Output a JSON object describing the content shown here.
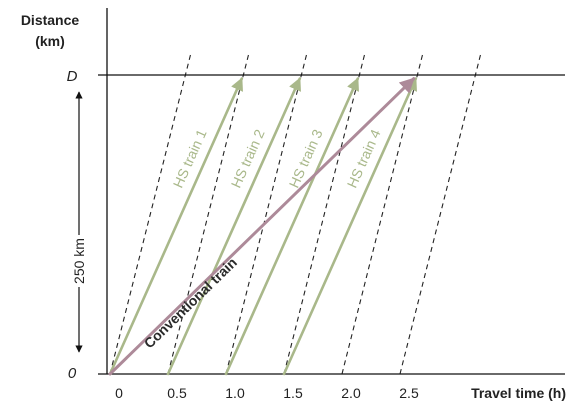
{
  "chart_data": {
    "type": "line",
    "xlabel": "Travel time (h)",
    "ylabel_line1": "Distance",
    "ylabel_line2": "(km)",
    "x_ticks": [
      {
        "value": 0,
        "label": "0"
      },
      {
        "value": 0.5,
        "label": "0.5"
      },
      {
        "value": 1.0,
        "label": "1.0"
      },
      {
        "value": 1.5,
        "label": "1.5"
      },
      {
        "value": 2.0,
        "label": "2.0"
      },
      {
        "value": 2.5,
        "label": "2.5"
      }
    ],
    "y_levels": [
      {
        "value": 0,
        "label": "0"
      },
      {
        "value": 250,
        "label": "D"
      }
    ],
    "distance_span_label": "250 km",
    "xlim": [
      -0.12,
      4.0
    ],
    "ylim": [
      0,
      340
    ],
    "grid": false,
    "series": [
      {
        "name": "HS train 1",
        "kind": "hs",
        "color": "#a9b88a",
        "x": [
          0.0,
          1.15
        ],
        "y": [
          0,
          250
        ]
      },
      {
        "name": "HS train 2",
        "kind": "hs",
        "color": "#a9b88a",
        "x": [
          0.5,
          1.65
        ],
        "y": [
          0,
          250
        ]
      },
      {
        "name": "HS train 3",
        "kind": "hs",
        "color": "#a9b88a",
        "x": [
          1.0,
          2.15
        ],
        "y": [
          0,
          250
        ]
      },
      {
        "name": "HS train 4",
        "kind": "hs",
        "color": "#a9b88a",
        "x": [
          1.5,
          2.65
        ],
        "y": [
          0,
          250
        ]
      },
      {
        "name": "Conventional train",
        "kind": "conventional",
        "color": "#ad8a99",
        "x": [
          0.0,
          2.65
        ],
        "y": [
          0,
          250
        ]
      }
    ],
    "dashed_lines": [
      {
        "x": [
          0.0,
          0.65
        ],
        "y": [
          0,
          250
        ]
      },
      {
        "x": [
          0.5,
          1.15
        ],
        "y": [
          0,
          250
        ]
      },
      {
        "x": [
          1.0,
          1.65
        ],
        "y": [
          0,
          250
        ]
      },
      {
        "x": [
          1.5,
          2.15
        ],
        "y": [
          0,
          250
        ]
      },
      {
        "x": [
          2.0,
          2.65
        ],
        "y": [
          0,
          250
        ]
      },
      {
        "x": [
          2.5,
          3.15
        ],
        "y": [
          0,
          250
        ]
      }
    ],
    "colors": {
      "axis": "#111111",
      "dashed": "#222222",
      "hs": "#a9b88a",
      "conventional": "#ad8a99"
    }
  }
}
